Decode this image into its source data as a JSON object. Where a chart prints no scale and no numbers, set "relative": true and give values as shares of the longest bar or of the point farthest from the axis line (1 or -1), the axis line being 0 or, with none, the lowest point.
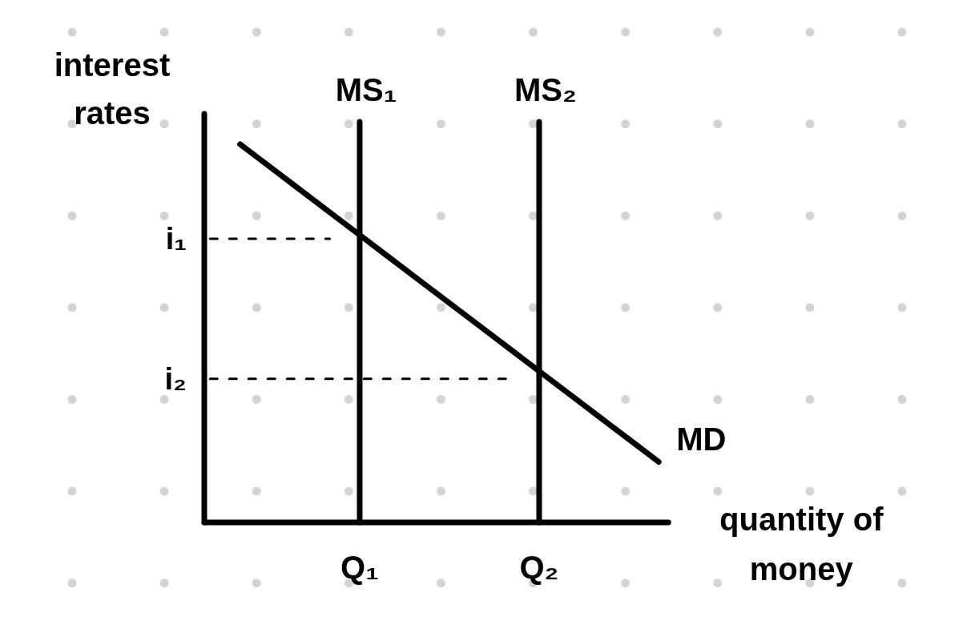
{
  "chart_data": {
    "type": "line",
    "relative": true,
    "xlabel": "quantity of money",
    "ylabel": "interest rates",
    "categories": [
      null,
      null,
      null,
      null,
      null,
      "Q₁",
      null,
      null,
      null,
      null,
      null,
      "Q₂",
      null,
      null,
      null,
      null
    ],
    "series": [
      {
        "name": "MD",
        "color": "#000000",
        "values": [
          null,
          1,
          0.94,
          0.88,
          0.82,
          0.76,
          0.7,
          0.64,
          0.58,
          0.52,
          0.46,
          0.4,
          0.34,
          0.28,
          0.22,
          0.16
        ]
      },
      {
        "name": "i₁",
        "color": "#000000",
        "line_style": "dashed",
        "values": [
          0.75,
          0.75,
          0.75,
          0.75,
          0.75,
          null,
          null,
          null,
          null,
          null,
          null,
          null,
          null,
          null,
          null,
          null
        ]
      },
      {
        "name": "i₂",
        "color": "#000000",
        "line_style": "dashed",
        "values": [
          0.38,
          0.38,
          0.38,
          0.38,
          0.38,
          0.38,
          0.38,
          0.38,
          0.38,
          0.38,
          0.38,
          null,
          null,
          null,
          null,
          null
        ]
      }
    ],
    "ref_lines": [
      {
        "axis": "x",
        "value": "Q₁",
        "label": "MS₁",
        "color": "#000000"
      },
      {
        "axis": "x",
        "value": "Q₂",
        "label": "MS₂",
        "color": "#000000"
      }
    ]
  }
}
